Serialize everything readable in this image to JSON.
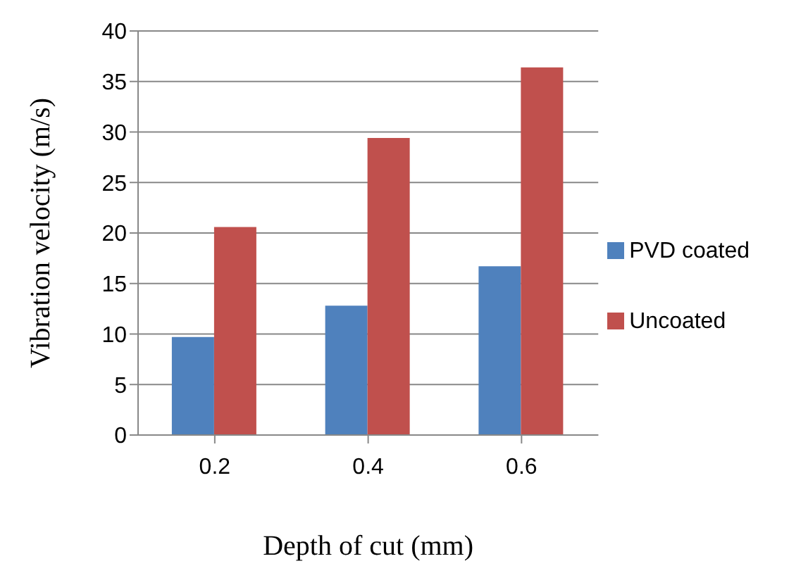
{
  "chart_data": {
    "type": "bar",
    "xlabel": "Depth of cut (mm)",
    "ylabel": "Vibration velocity (m/s)",
    "categories": [
      "0.2",
      "0.4",
      "0.6"
    ],
    "series": [
      {
        "name": "PVD coated",
        "color": "#4f81bd",
        "values": [
          9.7,
          12.8,
          16.7
        ]
      },
      {
        "name": "Uncoated",
        "color": "#c0504d",
        "values": [
          20.6,
          29.4,
          36.4
        ]
      }
    ],
    "ylim": [
      0,
      40
    ],
    "yticks": [
      0,
      5,
      10,
      15,
      20,
      25,
      30,
      35,
      40
    ],
    "grid": "y",
    "legend": "right"
  }
}
